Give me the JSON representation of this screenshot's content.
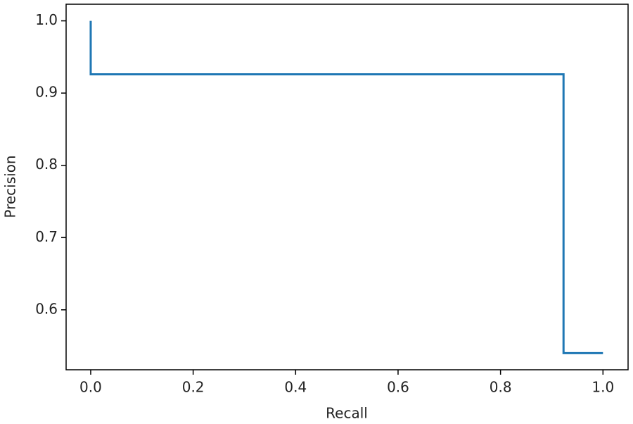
{
  "chart_data": {
    "type": "line",
    "x_label": "Recall",
    "y_label": "Precision",
    "x": [
      0,
      0,
      0.923,
      0.923,
      1.0
    ],
    "series": [
      {
        "name": "Precision",
        "color": "#1f77b4",
        "values": [
          1.0,
          0.926,
          0.926,
          0.54,
          0.54
        ]
      }
    ],
    "xlim": [
      -0.048,
      1.049
    ],
    "ylim": [
      0.517,
      1.023
    ],
    "xticks": [
      {
        "value": 0,
        "label": "0.0"
      },
      0.2,
      0.4,
      0.6,
      0.8,
      {
        "value": 1,
        "label": "1.0"
      }
    ],
    "yticks": [
      0.6,
      0.7,
      0.8,
      0.9,
      {
        "value": 1,
        "label": "1.0"
      }
    ],
    "grid": false
  }
}
